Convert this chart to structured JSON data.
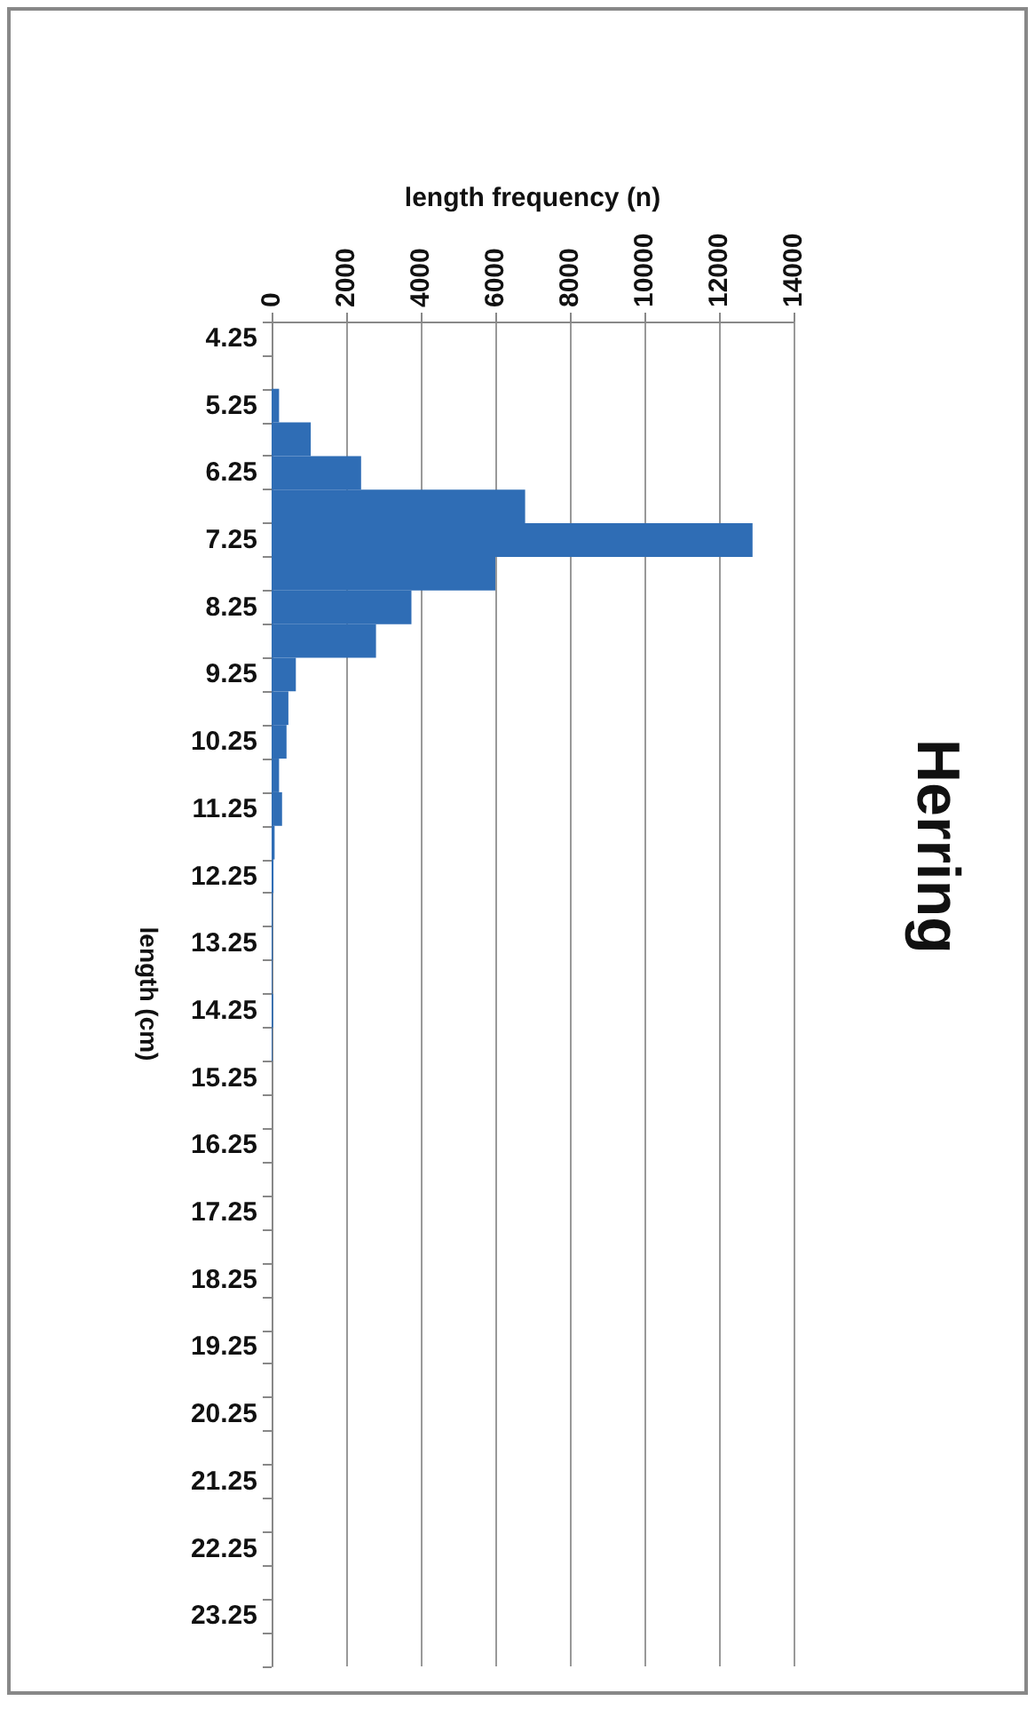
{
  "chart_data": {
    "type": "bar",
    "orientation": "horizontal",
    "title": "Herring",
    "xlabel": "length frequency (n)",
    "ylabel": "length (cm)",
    "categories": [
      "4.25",
      null,
      "5.25",
      null,
      "6.25",
      null,
      "7.25",
      null,
      "8.25",
      null,
      "9.25",
      null,
      "10.25",
      null,
      "11.25",
      null,
      "12.25",
      null,
      "13.25",
      null,
      "14.25",
      null,
      "15.25",
      null,
      "16.25",
      null,
      "17.25",
      null,
      "18.25",
      null,
      "19.25",
      null,
      "20.25",
      null,
      "21.25",
      null,
      "22.25",
      null,
      "23.25",
      null
    ],
    "values": [
      0,
      0,
      200,
      1050,
      2400,
      6800,
      12900,
      6000,
      3750,
      2800,
      650,
      450,
      400,
      200,
      280,
      80,
      50,
      30,
      30,
      20,
      40,
      20,
      0,
      0,
      0,
      0,
      0,
      0,
      0,
      0,
      0,
      0,
      0,
      0,
      0,
      0,
      0,
      0,
      0,
      0
    ],
    "color": "#2f6db5",
    "xlim": [
      0,
      14000
    ],
    "xticks": [
      0,
      2000,
      4000,
      6000,
      8000,
      10000,
      12000,
      14000
    ],
    "grid": "x"
  }
}
